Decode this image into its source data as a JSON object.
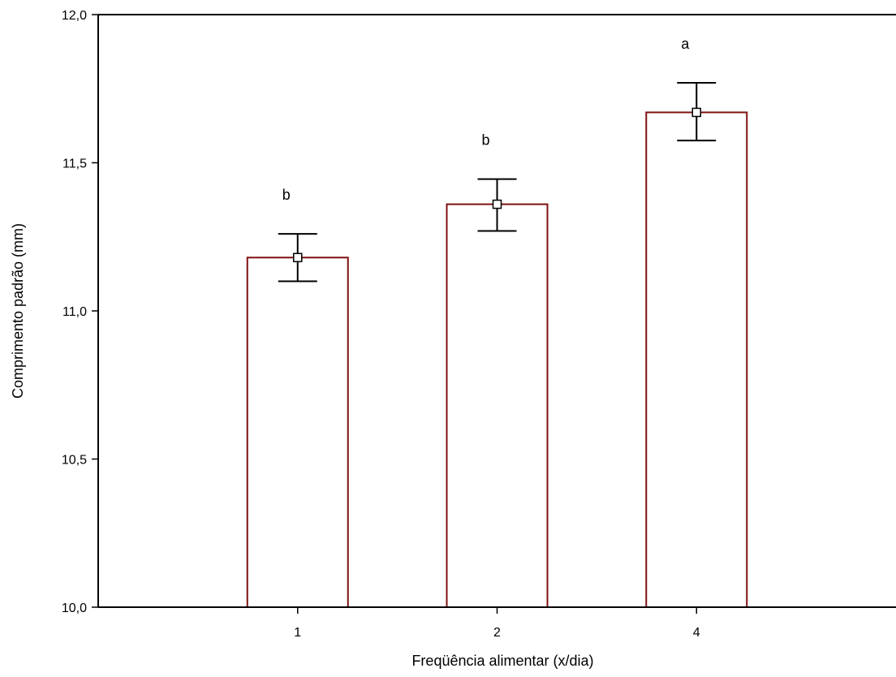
{
  "chart_data": {
    "type": "bar",
    "title": "",
    "xlabel": "Freqüência alimentar (x/dia)",
    "ylabel": "Comprimento padrão (mm)",
    "categories": [
      "1",
      "2",
      "4"
    ],
    "values": [
      11.18,
      11.36,
      11.67
    ],
    "error_low": [
      11.1,
      11.27,
      11.575
    ],
    "error_high": [
      11.26,
      11.445,
      11.77
    ],
    "significance_labels": [
      "b",
      "b",
      "a"
    ],
    "ylim": [
      10.0,
      12.0
    ],
    "yticks": [
      10.0,
      10.5,
      11.0,
      11.5,
      12.0
    ],
    "ytick_labels": [
      "10,0",
      "10,5",
      "11,0",
      "11,5",
      "12,0"
    ],
    "grid": false,
    "legend": "none",
    "colors": {
      "bar_edge": "#7f1010",
      "bar_fill": "#ffffff",
      "axis": "#000000",
      "error_bar": "#000000",
      "marker_fill": "#ffffff",
      "marker_edge": "#000000"
    }
  }
}
